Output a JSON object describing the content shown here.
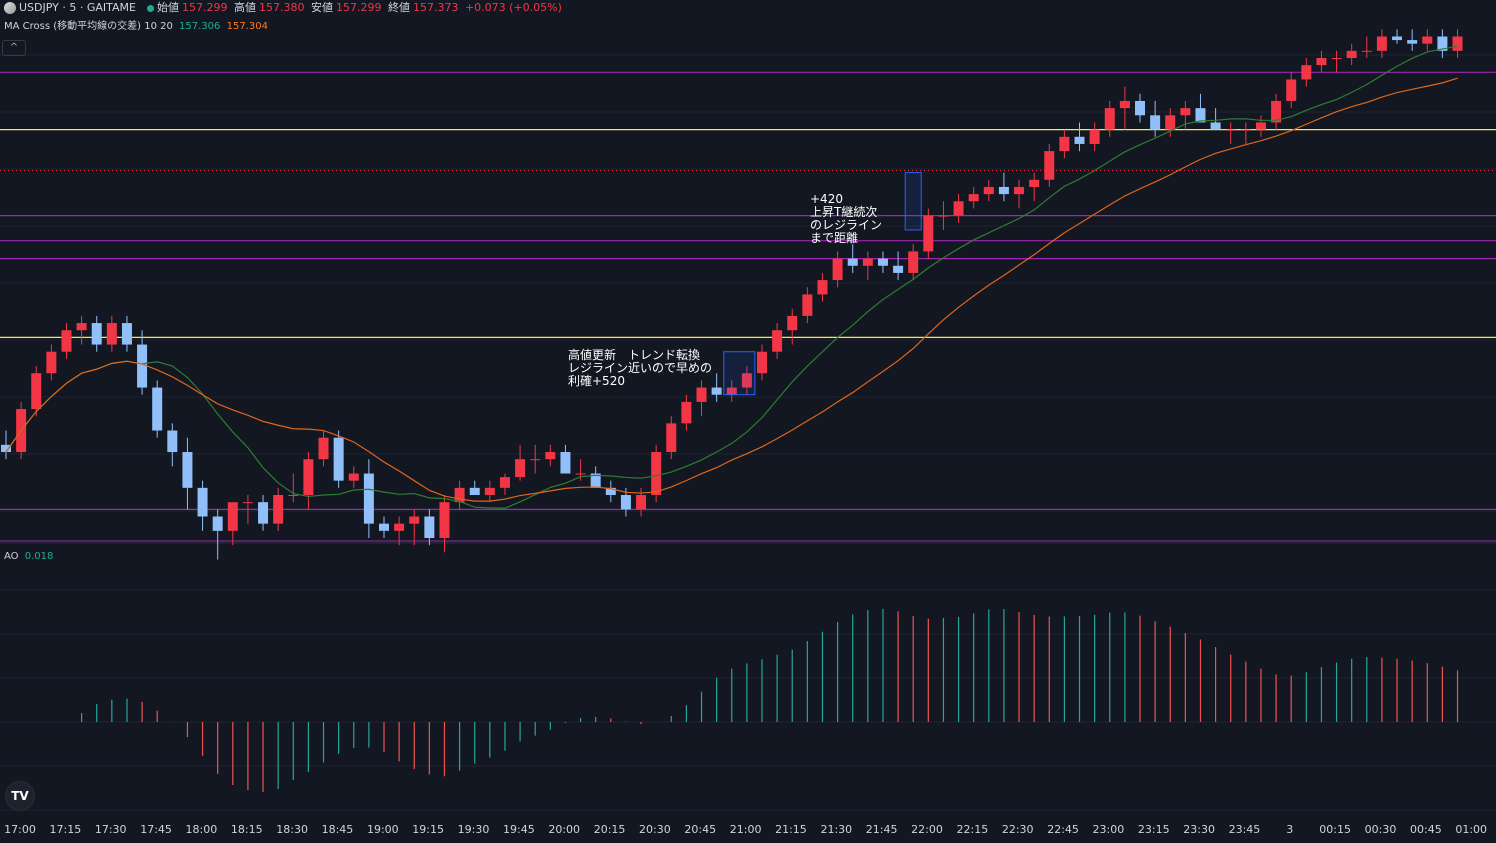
{
  "header": {
    "symbol": "USDJPY · 5 · GAITAME",
    "open_label": "始値",
    "open": "157.299",
    "high_label": "高値",
    "high": "157.380",
    "low_label": "安値",
    "low": "157.299",
    "close_label": "終値",
    "close": "157.373",
    "change": "+0.073 (+0.05%)"
  },
  "ma_indicator": {
    "label": "MA Cross (移動平均線の交差) 10 20",
    "fast": "157.306",
    "slow": "157.304"
  },
  "ao_indicator": {
    "label": "AO",
    "value": "0.018"
  },
  "annotations": {
    "note1": "高値更新　トレンド転換\nレジライン近いので早めの\n利確+520",
    "note2": "+420\n上昇T継続次\nのレジライン\nまで距離"
  },
  "colors": {
    "up": "#f23645",
    "down": "#90bff9",
    "ma_fast": "#2e7d32",
    "ma_slow": "#e0651a",
    "ao_up": "#26a69a",
    "ao_down": "#ef5350",
    "purple_line": "#9c27b0",
    "yellow_line": "#ffeb3b"
  },
  "chart_data": {
    "type": "candlestick",
    "x_ticks": [
      "17:00",
      "17:15",
      "17:30",
      "17:45",
      "18:00",
      "18:15",
      "18:30",
      "18:45",
      "19:00",
      "19:15",
      "19:30",
      "19:45",
      "20:00",
      "20:15",
      "20:30",
      "20:45",
      "21:00",
      "21:15",
      "21:30",
      "21:45",
      "22:00",
      "22:15",
      "22:30",
      "22:45",
      "23:00",
      "23:15",
      "23:30",
      "23:45",
      "3",
      "00:15",
      "00:30",
      "00:45",
      "01:00"
    ],
    "price_range": [
      156.73,
      157.46
    ],
    "candles": [
      [
        156.86,
        156.88,
        156.84,
        156.85
      ],
      [
        156.85,
        156.92,
        156.84,
        156.91
      ],
      [
        156.91,
        156.97,
        156.9,
        156.96
      ],
      [
        156.96,
        157.0,
        156.95,
        156.99
      ],
      [
        156.99,
        157.03,
        156.98,
        157.02
      ],
      [
        157.02,
        157.04,
        157.0,
        157.03
      ],
      [
        157.03,
        157.04,
        156.99,
        157.0
      ],
      [
        157.0,
        157.04,
        156.99,
        157.03
      ],
      [
        157.03,
        157.04,
        156.99,
        157.0
      ],
      [
        157.0,
        157.02,
        156.93,
        156.94
      ],
      [
        156.94,
        156.95,
        156.87,
        156.88
      ],
      [
        156.88,
        156.89,
        156.83,
        156.85
      ],
      [
        156.85,
        156.87,
        156.77,
        156.8
      ],
      [
        156.8,
        156.81,
        156.74,
        156.76
      ],
      [
        156.76,
        156.77,
        156.7,
        156.74
      ],
      [
        156.74,
        156.78,
        156.72,
        156.78
      ],
      [
        156.78,
        156.79,
        156.75,
        156.78
      ],
      [
        156.78,
        156.79,
        156.74,
        156.75
      ],
      [
        156.75,
        156.8,
        156.74,
        156.79
      ],
      [
        156.79,
        156.82,
        156.78,
        156.79
      ],
      [
        156.79,
        156.85,
        156.77,
        156.84
      ],
      [
        156.84,
        156.88,
        156.83,
        156.87
      ],
      [
        156.87,
        156.88,
        156.8,
        156.81
      ],
      [
        156.81,
        156.83,
        156.8,
        156.82
      ],
      [
        156.82,
        156.84,
        156.73,
        156.75
      ],
      [
        156.75,
        156.76,
        156.73,
        156.74
      ],
      [
        156.74,
        156.76,
        156.72,
        156.75
      ],
      [
        156.75,
        156.77,
        156.72,
        156.76
      ],
      [
        156.76,
        156.77,
        156.72,
        156.73
      ],
      [
        156.73,
        156.79,
        156.71,
        156.78
      ],
      [
        156.78,
        156.81,
        156.77,
        156.8
      ],
      [
        156.8,
        156.81,
        156.79,
        156.79
      ],
      [
        156.79,
        156.81,
        156.78,
        156.8
      ],
      [
        156.8,
        156.82,
        156.79,
        156.815
      ],
      [
        156.815,
        156.86,
        156.81,
        156.84
      ],
      [
        156.84,
        156.86,
        156.82,
        156.84
      ],
      [
        156.84,
        156.86,
        156.83,
        156.85
      ],
      [
        156.85,
        156.86,
        156.82,
        156.82
      ],
      [
        156.82,
        156.84,
        156.81,
        156.82
      ],
      [
        156.82,
        156.83,
        156.8,
        156.8
      ],
      [
        156.8,
        156.81,
        156.78,
        156.79
      ],
      [
        156.79,
        156.8,
        156.76,
        156.77
      ],
      [
        156.77,
        156.8,
        156.76,
        156.79
      ],
      [
        156.79,
        156.86,
        156.78,
        156.85
      ],
      [
        156.85,
        156.9,
        156.84,
        156.89
      ],
      [
        156.89,
        156.93,
        156.88,
        156.92
      ],
      [
        156.92,
        156.95,
        156.9,
        156.94
      ],
      [
        156.94,
        156.96,
        156.92,
        156.93
      ],
      [
        156.93,
        156.95,
        156.92,
        156.94
      ],
      [
        156.94,
        156.97,
        156.93,
        156.96
      ],
      [
        156.96,
        157.0,
        156.95,
        156.99
      ],
      [
        156.99,
        157.03,
        156.98,
        157.02
      ],
      [
        157.02,
        157.05,
        157.0,
        157.04
      ],
      [
        157.04,
        157.08,
        157.03,
        157.07
      ],
      [
        157.07,
        157.1,
        157.06,
        157.09
      ],
      [
        157.09,
        157.13,
        157.08,
        157.12
      ],
      [
        157.12,
        157.14,
        157.1,
        157.11
      ],
      [
        157.11,
        157.13,
        157.09,
        157.12
      ],
      [
        157.12,
        157.13,
        157.1,
        157.11
      ],
      [
        157.11,
        157.13,
        157.09,
        157.1
      ],
      [
        157.1,
        157.14,
        157.09,
        157.13
      ],
      [
        157.13,
        157.19,
        157.12,
        157.18
      ],
      [
        157.18,
        157.2,
        157.16,
        157.18
      ],
      [
        157.18,
        157.21,
        157.17,
        157.2
      ],
      [
        157.2,
        157.22,
        157.19,
        157.21
      ],
      [
        157.21,
        157.23,
        157.2,
        157.22
      ],
      [
        157.22,
        157.24,
        157.2,
        157.21
      ],
      [
        157.21,
        157.23,
        157.19,
        157.22
      ],
      [
        157.22,
        157.24,
        157.2,
        157.23
      ],
      [
        157.23,
        157.28,
        157.22,
        157.27
      ],
      [
        157.27,
        157.3,
        157.26,
        157.29
      ],
      [
        157.29,
        157.31,
        157.27,
        157.28
      ],
      [
        157.28,
        157.31,
        157.27,
        157.3
      ],
      [
        157.3,
        157.34,
        157.29,
        157.33
      ],
      [
        157.33,
        157.36,
        157.3,
        157.34
      ],
      [
        157.34,
        157.35,
        157.31,
        157.32
      ],
      [
        157.32,
        157.34,
        157.29,
        157.3
      ],
      [
        157.3,
        157.33,
        157.29,
        157.32
      ],
      [
        157.32,
        157.34,
        157.3,
        157.33
      ],
      [
        157.33,
        157.35,
        157.31,
        157.31
      ],
      [
        157.31,
        157.33,
        157.3,
        157.3
      ],
      [
        157.3,
        157.31,
        157.28,
        157.3
      ],
      [
        157.3,
        157.31,
        157.28,
        157.3
      ],
      [
        157.3,
        157.32,
        157.29,
        157.31
      ],
      [
        157.31,
        157.35,
        157.3,
        157.34
      ],
      [
        157.34,
        157.38,
        157.33,
        157.37
      ],
      [
        157.37,
        157.4,
        157.36,
        157.39
      ],
      [
        157.39,
        157.41,
        157.38,
        157.4
      ],
      [
        157.4,
        157.41,
        157.38,
        157.4
      ],
      [
        157.4,
        157.42,
        157.39,
        157.41
      ],
      [
        157.41,
        157.43,
        157.4,
        157.41
      ],
      [
        157.41,
        157.44,
        157.4,
        157.43
      ],
      [
        157.43,
        157.44,
        157.42,
        157.425
      ],
      [
        157.425,
        157.44,
        157.41,
        157.42
      ],
      [
        157.42,
        157.44,
        157.41,
        157.43
      ],
      [
        157.43,
        157.44,
        157.4,
        157.41
      ],
      [
        157.41,
        157.44,
        157.4,
        157.43
      ]
    ],
    "hlines": [
      {
        "price": 157.38,
        "color": "purple"
      },
      {
        "price": 157.3,
        "color": "yellow"
      },
      {
        "price": 157.18,
        "color": "purple"
      },
      {
        "price": 157.145,
        "color": "purple"
      },
      {
        "price": 157.12,
        "color": "purple"
      },
      {
        "price": 157.01,
        "color": "yellow"
      },
      {
        "price": 156.77,
        "color": "purple"
      }
    ]
  }
}
